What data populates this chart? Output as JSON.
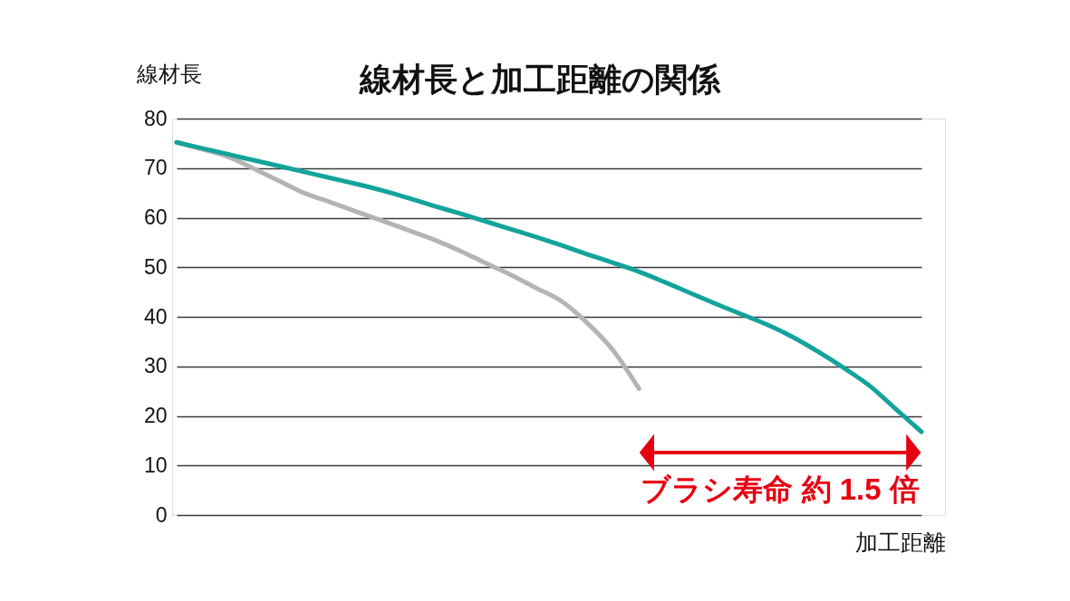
{
  "chart_data": {
    "type": "line",
    "title": "線材長と加工距離の関係",
    "ylabel": "線材長",
    "xlabel": "加工距離",
    "categories": [
      null,
      null,
      null,
      null,
      null,
      null,
      null,
      null,
      null,
      null,
      null,
      null,
      null,
      null,
      null,
      null,
      null,
      null,
      null,
      null,
      null,
      null,
      null,
      null,
      null,
      null,
      null,
      null,
      null,
      null
    ],
    "series": [
      {
        "color": "#b4b4b4",
        "values": [
          75.2,
          73.8,
          72.3,
          69.9,
          67.4,
          64.9,
          63.1,
          61.2,
          59.4,
          57.5,
          55.6,
          53.4,
          50.9,
          48.5,
          45.8,
          43.1,
          38.7,
          33.2,
          25.5,
          null,
          null,
          null,
          null,
          null,
          null,
          null,
          null,
          null,
          null,
          null
        ]
      },
      {
        "color": "#13a39b",
        "values": [
          75.2,
          74.0,
          72.8,
          71.6,
          70.4,
          69.2,
          68.0,
          66.8,
          65.5,
          64.0,
          62.4,
          60.9,
          59.3,
          57.7,
          56.1,
          54.4,
          52.6,
          50.9,
          49.1,
          47.0,
          44.8,
          42.6,
          40.5,
          38.4,
          35.9,
          32.9,
          29.6,
          26.0,
          21.4,
          16.8
        ]
      }
    ],
    "ylim": [
      0,
      80
    ],
    "yticks": [
      0,
      10,
      20,
      30,
      40,
      50,
      60,
      70,
      80
    ],
    "grid": "y",
    "marker": "none",
    "line_style": "solid",
    "tick_labels": "y",
    "annotations": [
      "ブラシ寿命 約 1.5 倍"
    ]
  }
}
